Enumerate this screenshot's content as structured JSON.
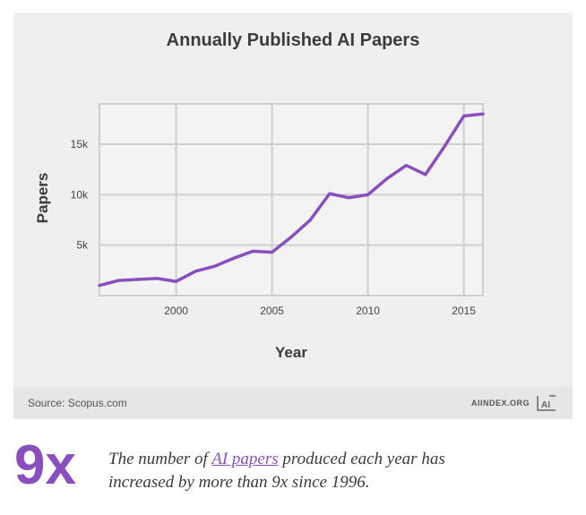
{
  "chart_data": {
    "type": "line",
    "title": "Annually Published AI Papers",
    "xlabel": "Year",
    "ylabel": "Papers",
    "xlim": [
      1996,
      2016
    ],
    "ylim": [
      0,
      19000
    ],
    "x_ticks": [
      2000,
      2005,
      2010,
      2015
    ],
    "x_tick_labels": [
      "2000",
      "2005",
      "2010",
      "2015"
    ],
    "y_ticks": [
      5000,
      10000,
      15000
    ],
    "y_tick_labels": [
      "5k",
      "10k",
      "15k"
    ],
    "grid": true,
    "series": [
      {
        "color": "#8a4fbe",
        "x": [
          1996,
          1997,
          1998,
          1999,
          2000,
          2001,
          2002,
          2003,
          2004,
          2005,
          2006,
          2007,
          2008,
          2009,
          2010,
          2011,
          2012,
          2013,
          2014,
          2015,
          2016
        ],
        "y": [
          1000,
          1500,
          1600,
          1700,
          1400,
          2400,
          2900,
          3700,
          4400,
          4300,
          5800,
          7500,
          10100,
          9700,
          10000,
          11600,
          12900,
          12000,
          14800,
          17800,
          18000
        ]
      }
    ]
  },
  "footer": {
    "source": "Source: Scopus.com",
    "brand": "AIINDEX.ORG",
    "logo_icon": "ai-logo-icon"
  },
  "highlight": {
    "number": "9x",
    "caption_before": "The number of ",
    "caption_link": "AI papers",
    "caption_after": " produced each year has increased by more than 9x since 1996."
  }
}
